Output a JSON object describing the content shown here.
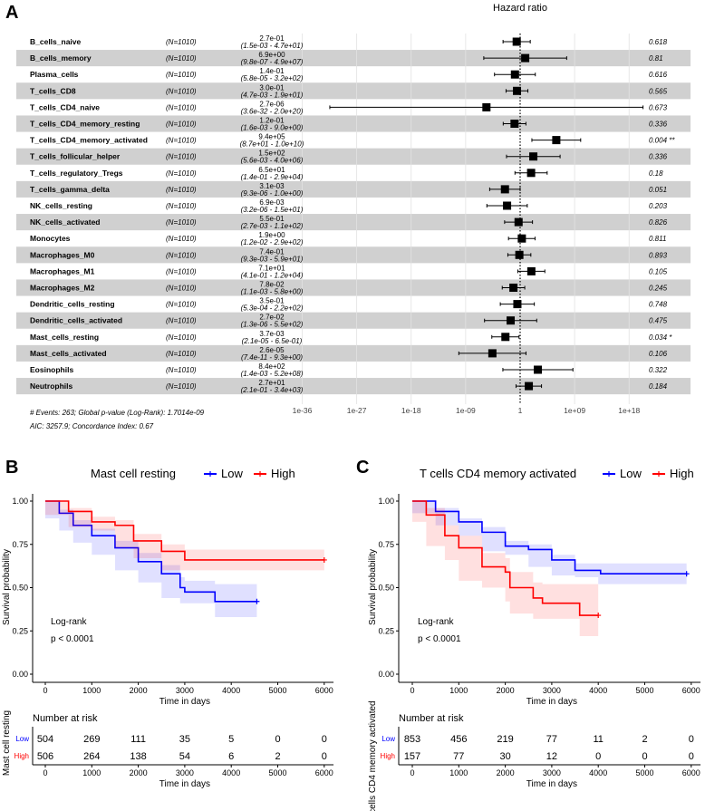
{
  "panel_labels": [
    "A",
    "B",
    "C"
  ],
  "chart_data": [
    {
      "type": "forest",
      "title": "Hazard ratio",
      "x_scale": "log10",
      "x_ticks": [
        -36,
        -27,
        -18,
        -9,
        0,
        9,
        18
      ],
      "x_tick_labels": [
        "1e-36",
        "1e-27",
        "1e-18",
        "1e-09",
        "1",
        "1e+09",
        "1e+18"
      ],
      "reference_line": 1,
      "rows": [
        {
          "name": "B_cells_naive",
          "n": "(N=1010)",
          "hr_text": "2.7e-01",
          "ci_text": "(1.5e-03 - 4.7e+01)",
          "hr": 0.27,
          "lo": 0.0015,
          "hi": 47,
          "p": "0.618"
        },
        {
          "name": "B_cells_memory",
          "n": "(N=1010)",
          "hr_text": "6.9e+00",
          "ci_text": "(9.8e-07 - 4.9e+07)",
          "hr": 6.9,
          "lo": 9.8e-07,
          "hi": 49000000.0,
          "p": "0.81"
        },
        {
          "name": "Plasma_cells",
          "n": "(N=1010)",
          "hr_text": "1.4e-01",
          "ci_text": "(5.8e-05 - 3.2e+02)",
          "hr": 0.14,
          "lo": 5.8e-05,
          "hi": 320,
          "p": "0.616"
        },
        {
          "name": "T_cells_CD8",
          "n": "(N=1010)",
          "hr_text": "3.0e-01",
          "ci_text": "(4.7e-03 - 1.9e+01)",
          "hr": 0.3,
          "lo": 0.0047,
          "hi": 19,
          "p": "0.565"
        },
        {
          "name": "T_cells_CD4_naive",
          "n": "(N=1010)",
          "hr_text": "2.7e-06",
          "ci_text": "(3.6e-32 - 2.0e+20)",
          "hr": 2.7e-06,
          "lo": 3.6e-32,
          "hi": 2e+20,
          "p": "0.673"
        },
        {
          "name": "T_cells_CD4_memory_resting",
          "n": "(N=1010)",
          "hr_text": "1.2e-01",
          "ci_text": "(1.6e-03 - 9.0e+00)",
          "hr": 0.12,
          "lo": 0.0016,
          "hi": 9.0,
          "p": "0.336"
        },
        {
          "name": "T_cells_CD4_memory_activated",
          "n": "(N=1010)",
          "hr_text": "9.4e+05",
          "ci_text": "(8.7e+01 - 1.0e+10)",
          "hr": 940000.0,
          "lo": 87,
          "hi": 10000000000.0,
          "p": "0.004 **"
        },
        {
          "name": "T_cells_follicular_helper",
          "n": "(N=1010)",
          "hr_text": "1.5e+02",
          "ci_text": "(5.6e-03 - 4.0e+06)",
          "hr": 150,
          "lo": 0.0056,
          "hi": 4000000.0,
          "p": "0.336"
        },
        {
          "name": "T_cells_regulatory_Tregs",
          "n": "(N=1010)",
          "hr_text": "6.5e+01",
          "ci_text": "(1.4e-01 - 2.9e+04)",
          "hr": 65,
          "lo": 0.14,
          "hi": 29000.0,
          "p": "0.18"
        },
        {
          "name": "T_cells_gamma_delta",
          "n": "(N=1010)",
          "hr_text": "3.1e-03",
          "ci_text": "(9.3e-06 - 1.0e+00)",
          "hr": 0.0031,
          "lo": 9.3e-06,
          "hi": 1.0,
          "p": "0.051"
        },
        {
          "name": "NK_cells_resting",
          "n": "(N=1010)",
          "hr_text": "6.9e-03",
          "ci_text": "(3.2e-06 - 1.5e+01)",
          "hr": 0.0069,
          "lo": 3.2e-06,
          "hi": 15,
          "p": "0.203"
        },
        {
          "name": "NK_cells_activated",
          "n": "(N=1010)",
          "hr_text": "5.5e-01",
          "ci_text": "(2.7e-03 - 1.1e+02)",
          "hr": 0.55,
          "lo": 0.0027,
          "hi": 110,
          "p": "0.826"
        },
        {
          "name": "Monocytes",
          "n": "(N=1010)",
          "hr_text": "1.9e+00",
          "ci_text": "(1.2e-02 - 2.9e+02)",
          "hr": 1.9,
          "lo": 0.012,
          "hi": 290,
          "p": "0.811"
        },
        {
          "name": "Macrophages_M0",
          "n": "(N=1010)",
          "hr_text": "7.4e-01",
          "ci_text": "(9.3e-03 - 5.9e+01)",
          "hr": 0.74,
          "lo": 0.0093,
          "hi": 59,
          "p": "0.893"
        },
        {
          "name": "Macrophages_M1",
          "n": "(N=1010)",
          "hr_text": "7.1e+01",
          "ci_text": "(4.1e-01 - 1.2e+04)",
          "hr": 71,
          "lo": 0.41,
          "hi": 12000.0,
          "p": "0.105"
        },
        {
          "name": "Macrophages_M2",
          "n": "(N=1010)",
          "hr_text": "7.8e-02",
          "ci_text": "(1.1e-03 - 5.8e+00)",
          "hr": 0.078,
          "lo": 0.0011,
          "hi": 5.8,
          "p": "0.245"
        },
        {
          "name": "Dendritic_cells_resting",
          "n": "(N=1010)",
          "hr_text": "3.5e-01",
          "ci_text": "(5.3e-04 - 2.2e+02)",
          "hr": 0.35,
          "lo": 0.00053,
          "hi": 220,
          "p": "0.748"
        },
        {
          "name": "Dendritic_cells_activated",
          "n": "(N=1010)",
          "hr_text": "2.7e-02",
          "ci_text": "(1.3e-06 - 5.5e+02)",
          "hr": 0.027,
          "lo": 1.3e-06,
          "hi": 550,
          "p": "0.475"
        },
        {
          "name": "Mast_cells_resting",
          "n": "(N=1010)",
          "hr_text": "3.7e-03",
          "ci_text": "(2.1e-05 - 6.5e-01)",
          "hr": 0.0037,
          "lo": 2.1e-05,
          "hi": 0.65,
          "p": "0.034 *"
        },
        {
          "name": "Mast_cells_activated",
          "n": "(N=1010)",
          "hr_text": "2.6e-05",
          "ci_text": "(7.4e-11 - 9.3e+00)",
          "hr": 2.6e-05,
          "lo": 7.4e-11,
          "hi": 9.3,
          "p": "0.106"
        },
        {
          "name": "Eosinophils",
          "n": "(N=1010)",
          "hr_text": "8.4e+02",
          "ci_text": "(1.4e-03 - 5.2e+08)",
          "hr": 840,
          "lo": 0.0014,
          "hi": 520000000.0,
          "p": "0.322"
        },
        {
          "name": "Neutrophils",
          "n": "(N=1010)",
          "hr_text": "2.7e+01",
          "ci_text": "(2.1e-01 - 3.4e+03)",
          "hr": 27,
          "lo": 0.21,
          "hi": 3400,
          "p": "0.184"
        }
      ],
      "footer": [
        "# Events: 263; Global p-value (Log-Rank): 1.7014e-09",
        "AIC: 3257.9; Concordance Index: 0.67"
      ]
    },
    {
      "type": "line",
      "subtype": "kaplan-meier",
      "title": "Mast cell resting",
      "legend": [
        "Low",
        "High"
      ],
      "xlabel": "Time in days",
      "ylabel": "Survival probability",
      "xlim": [
        0,
        6000
      ],
      "ylim": [
        0,
        1
      ],
      "x_ticks": [
        "0",
        "1000",
        "2000",
        "3000",
        "4000",
        "5000",
        "6000"
      ],
      "y_ticks": [
        "0.00",
        "0.25",
        "0.50",
        "0.75",
        "1.00"
      ],
      "annotation": [
        "Log-rank",
        "p < 0.0001"
      ],
      "series": [
        {
          "name": "Low",
          "color": "#0000ff",
          "points": [
            [
              0,
              1,
              1,
              1
            ],
            [
              300,
              0.93,
              0.9,
              0.95
            ],
            [
              600,
              0.86,
              0.83,
              0.89
            ],
            [
              1000,
              0.8,
              0.76,
              0.84
            ],
            [
              1500,
              0.73,
              0.69,
              0.77
            ],
            [
              2000,
              0.65,
              0.6,
              0.7
            ],
            [
              2500,
              0.58,
              0.53,
              0.63
            ],
            [
              2900,
              0.5,
              0.44,
              0.56
            ],
            [
              3000,
              0.475,
              0.41,
              0.54
            ],
            [
              3650,
              0.475,
              0.41,
              0.54
            ],
            [
              3650,
              0.42,
              0.33,
              0.52
            ],
            [
              4550,
              0.42,
              0.33,
              0.52
            ]
          ]
        },
        {
          "name": "High",
          "color": "#ff0000",
          "points": [
            [
              0,
              1,
              1,
              1
            ],
            [
              500,
              0.94,
              0.92,
              0.96
            ],
            [
              1000,
              0.88,
              0.85,
              0.91
            ],
            [
              1500,
              0.86,
              0.83,
              0.89
            ],
            [
              1900,
              0.77,
              0.73,
              0.81
            ],
            [
              2500,
              0.71,
              0.67,
              0.75
            ],
            [
              3000,
              0.66,
              0.6,
              0.72
            ],
            [
              6000,
              0.66,
              0.6,
              0.72
            ]
          ]
        }
      ],
      "risk_table": {
        "title": "Number at risk",
        "ylabel": "Mast cell resting",
        "xlabel": "Time in days",
        "rows": [
          {
            "name": "Low",
            "color": "#0000ff",
            "values": [
              "504",
              "269",
              "111",
              "35",
              "5",
              "0",
              "0"
            ]
          },
          {
            "name": "High",
            "color": "#ff0000",
            "values": [
              "506",
              "264",
              "138",
              "54",
              "6",
              "2",
              "0"
            ]
          }
        ]
      }
    },
    {
      "type": "line",
      "subtype": "kaplan-meier",
      "title": "T cells CD4 memory activated",
      "legend": [
        "Low",
        "High"
      ],
      "xlabel": "Time in days",
      "ylabel": "Survival probability",
      "xlim": [
        0,
        6000
      ],
      "ylim": [
        0,
        1
      ],
      "x_ticks": [
        "0",
        "1000",
        "2000",
        "3000",
        "4000",
        "5000",
        "6000"
      ],
      "y_ticks": [
        "0.00",
        "0.25",
        "0.50",
        "0.75",
        "1.00"
      ],
      "annotation": [
        "Log-rank",
        "p < 0.0001"
      ],
      "series": [
        {
          "name": "Low",
          "color": "#0000ff",
          "points": [
            [
              0,
              1,
              1,
              1
            ],
            [
              500,
              0.94,
              0.93,
              0.96
            ],
            [
              1000,
              0.88,
              0.86,
              0.9
            ],
            [
              1500,
              0.82,
              0.8,
              0.85
            ],
            [
              2000,
              0.74,
              0.71,
              0.77
            ],
            [
              2500,
              0.72,
              0.69,
              0.75
            ],
            [
              3000,
              0.66,
              0.62,
              0.69
            ],
            [
              3500,
              0.6,
              0.57,
              0.64
            ],
            [
              4000,
              0.6,
              0.56,
              0.64
            ],
            [
              4050,
              0.58,
              0.52,
              0.64
            ],
            [
              5900,
              0.58,
              0.52,
              0.64
            ]
          ]
        },
        {
          "name": "High",
          "color": "#ff0000",
          "points": [
            [
              0,
              1,
              1,
              1
            ],
            [
              300,
              0.92,
              0.88,
              0.96
            ],
            [
              700,
              0.8,
              0.74,
              0.86
            ],
            [
              1000,
              0.73,
              0.66,
              0.8
            ],
            [
              1500,
              0.62,
              0.54,
              0.7
            ],
            [
              2000,
              0.59,
              0.5,
              0.67
            ],
            [
              2100,
              0.5,
              0.42,
              0.59
            ],
            [
              2600,
              0.44,
              0.35,
              0.53
            ],
            [
              2800,
              0.41,
              0.32,
              0.52
            ],
            [
              3600,
              0.41,
              0.32,
              0.52
            ],
            [
              3600,
              0.34,
              0.22,
              0.52
            ],
            [
              4000,
              0.34,
              0.22,
              0.52
            ]
          ]
        }
      ],
      "risk_table": {
        "title": "Number at risk",
        "ylabel": "T cells CD4 memory activated",
        "xlabel": "Time in days",
        "rows": [
          {
            "name": "Low",
            "color": "#0000ff",
            "values": [
              "853",
              "456",
              "219",
              "77",
              "11",
              "2",
              "0"
            ]
          },
          {
            "name": "High",
            "color": "#ff0000",
            "values": [
              "157",
              "77",
              "30",
              "12",
              "0",
              "0",
              "0"
            ]
          }
        ]
      }
    }
  ]
}
